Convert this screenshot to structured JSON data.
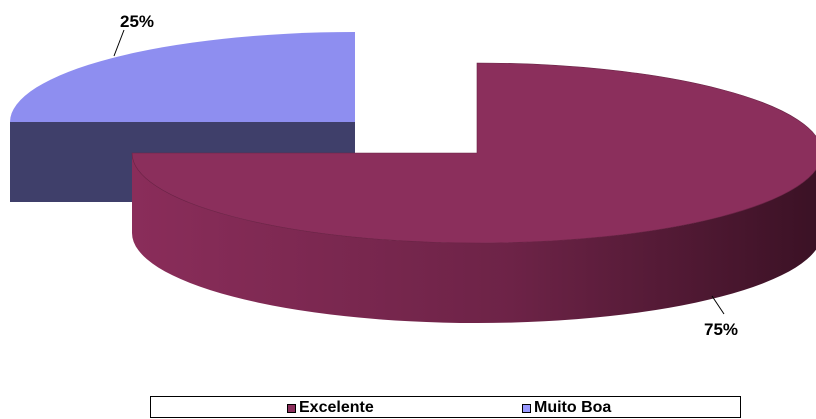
{
  "chart_data": {
    "type": "pie",
    "three_d": true,
    "exploded": true,
    "categories": [
      "Excelente",
      "Muito Boa"
    ],
    "values": [
      75,
      25
    ],
    "data_labels": [
      "75%",
      "25%"
    ],
    "colors": {
      "Excelente": {
        "top": "#8b2f5c",
        "side_light": "#8a2d5a",
        "side_dark": "#3f1327"
      },
      "Muito Boa": {
        "top": "#8e8ef0",
        "side_light": "#3f3f6a",
        "side_dark": "#33335a"
      }
    },
    "legend": {
      "position": "bottom",
      "entries": [
        {
          "name": "Excelente",
          "color": "#8b2f5c"
        },
        {
          "name": "Muito Boa",
          "color": "#9999ff"
        }
      ]
    }
  }
}
